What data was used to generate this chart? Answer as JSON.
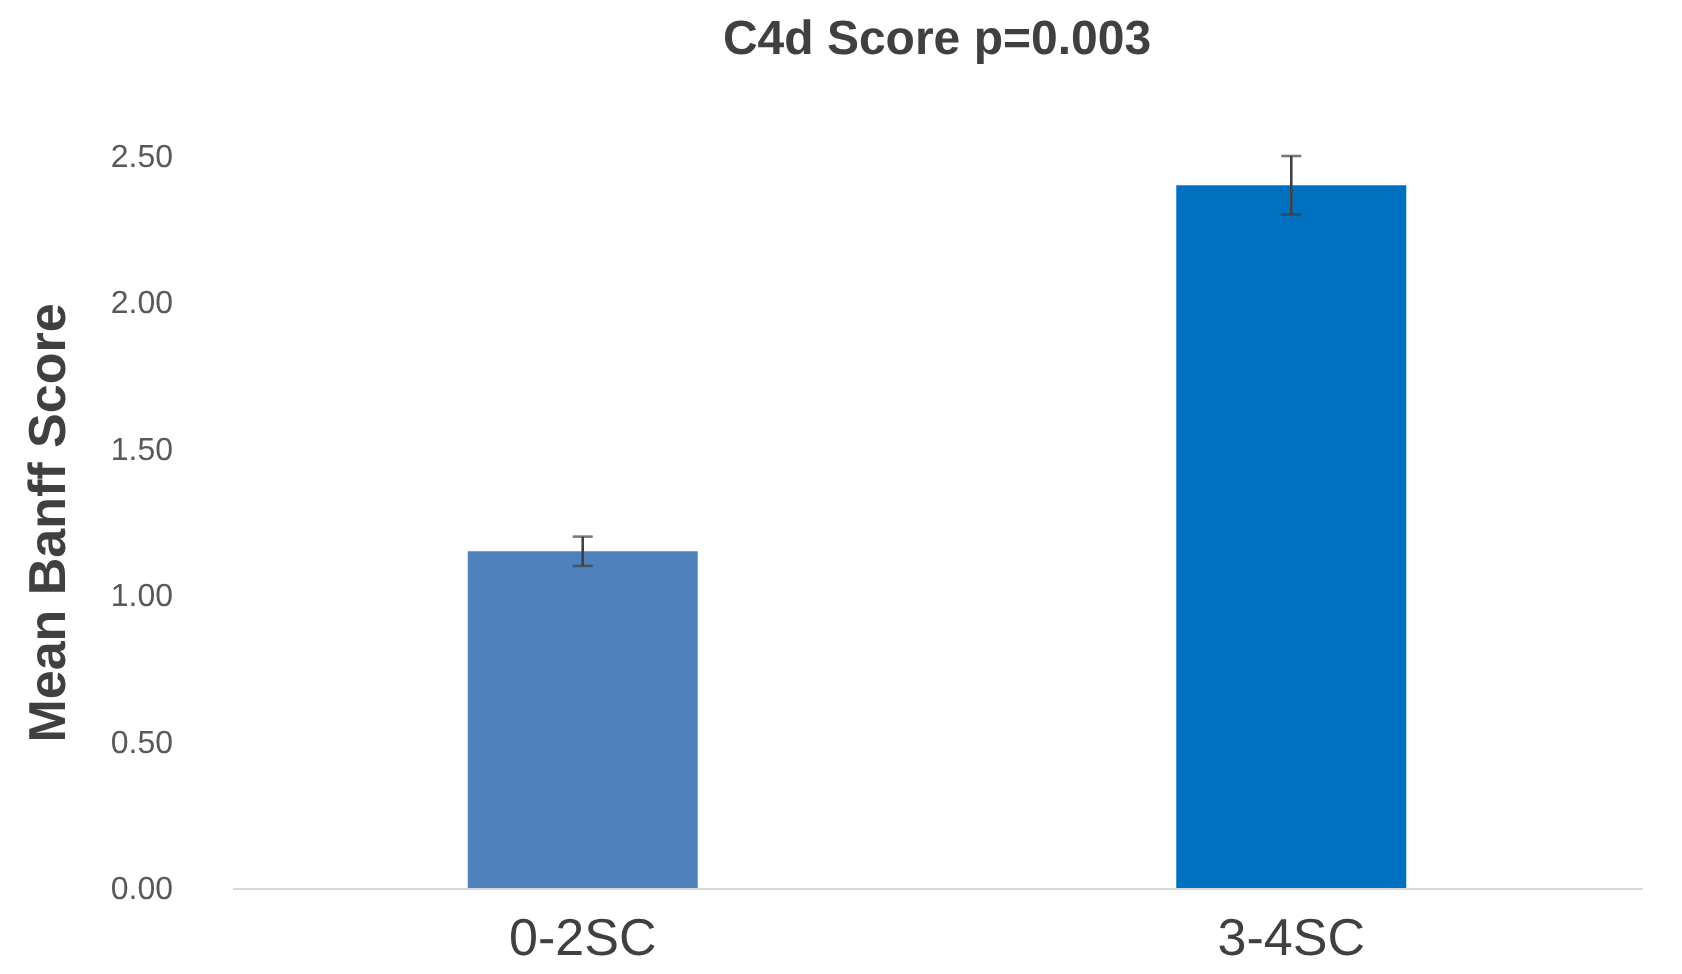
{
  "chart_data": {
    "type": "bar",
    "title": "C4d Score p=0.003",
    "ylabel": "Mean Banff Score",
    "categories": [
      "0-2SC",
      "3-4SC"
    ],
    "values": [
      1.15,
      2.4
    ],
    "colors": [
      "#4f81bd",
      "#0070c0"
    ],
    "errors": [
      0.05,
      0.1
    ],
    "ylim": [
      0,
      2.5
    ],
    "yticks": [
      {
        "value": 0,
        "label": "0.00"
      },
      {
        "value": 0.5,
        "label": "0.50"
      },
      {
        "value": 1,
        "label": "1.00"
      },
      {
        "value": 1.5,
        "label": "1.50"
      },
      {
        "value": 2,
        "label": "2.00"
      },
      {
        "value": 2.5,
        "label": "2.50"
      }
    ],
    "grid": false
  }
}
